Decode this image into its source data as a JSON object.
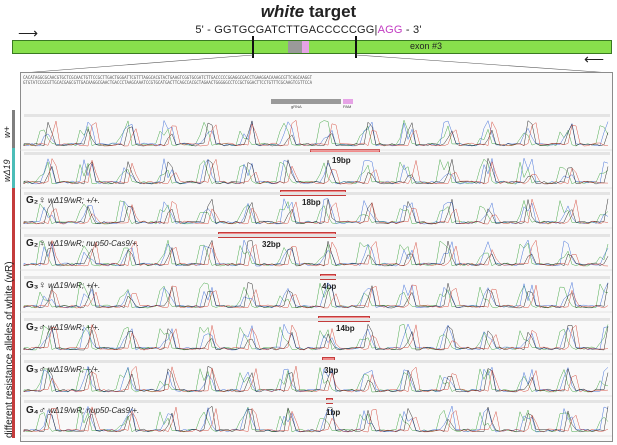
{
  "title": {
    "italic_part": "white",
    "rest": "target"
  },
  "target_sequence": {
    "prefix": "5' - GGTGCGATCTTGACCCCCGG|",
    "pam": "AGG",
    "suffix": " - 3'"
  },
  "exon_label": "exon #3",
  "annotations": {
    "grna": "gRNA",
    "pam": "PAM"
  },
  "tracks": [
    {
      "id": "w-plus",
      "label": "w+",
      "color": "#7f7f7f"
    },
    {
      "id": "w-delta19",
      "label": "wΔ19",
      "color": "#4cbdb8",
      "deletion_label": "19bp"
    },
    {
      "id": "g2-female-a",
      "sex_symbol": "G₂♀",
      "genotype": "wΔ19/wR; +/+.",
      "deletion_label": "18bp"
    },
    {
      "id": "g2-female-b",
      "sex_symbol": "G₂♀",
      "genotype": "wΔ19/wR; nup50-Cas9/+.",
      "deletion_label": "32bp"
    },
    {
      "id": "g3-female",
      "sex_symbol": "G₃♀",
      "genotype": "wΔ19/wR; +/+.",
      "deletion_label": "4bp"
    },
    {
      "id": "g2-male",
      "sex_symbol": "G₂♂",
      "genotype": "wΔ19/wR; +/+.",
      "deletion_label": "14bp"
    },
    {
      "id": "g3-male",
      "sex_symbol": "G₃♂",
      "genotype": "wΔ19/wR; +/+.",
      "deletion_label": "3bp"
    },
    {
      "id": "g4-male",
      "sex_symbol": "G₄♂",
      "genotype": "wΔ19/wR; nup50-Cas9/+.",
      "deletion_label": "1bp"
    }
  ],
  "group_label": "different  resistance  alleles of white (wR)",
  "colors": {
    "exon": "#88e04c",
    "grna": "#9a9a9a",
    "pam": "#e6a3e6",
    "deletion": "#f28b8b",
    "group_bar": "#c43c3c"
  }
}
